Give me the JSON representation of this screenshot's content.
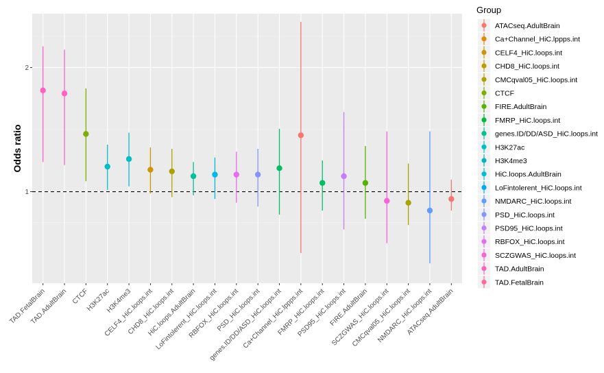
{
  "chart_data": {
    "type": "errorbar-point",
    "title": "",
    "xlabel": "",
    "ylabel": "Odds ratio",
    "y_scale": "log",
    "ylim": [
      0.6,
      2.7
    ],
    "y_ticks": [
      1,
      2
    ],
    "y_tick_labels": [
      "1",
      "2"
    ],
    "reference_line": {
      "y": 1,
      "style": "dashed"
    },
    "grid": true,
    "legend": {
      "title": "Group",
      "placement": "right"
    },
    "points": [
      {
        "group": "TAD.FetalBrain",
        "or": 1.76,
        "lo": 1.18,
        "hi": 2.25,
        "color": "#FF61C3"
      },
      {
        "group": "TAD.AdultBrain",
        "or": 1.73,
        "lo": 1.16,
        "hi": 2.21,
        "color": "#FF61C3"
      },
      {
        "group": "CTCF",
        "or": 1.38,
        "lo": 1.06,
        "hi": 1.78,
        "color": "#7CAE00"
      },
      {
        "group": "H3K27ac",
        "or": 1.15,
        "lo": 1.01,
        "hi": 1.3,
        "color": "#00BFC4"
      },
      {
        "group": "H3K4me3",
        "or": 1.2,
        "lo": 1.03,
        "hi": 1.39,
        "color": "#00BFC4"
      },
      {
        "group": "CELF4_HiC.loops.int",
        "or": 1.13,
        "lo": 0.99,
        "hi": 1.28,
        "color": "#CD9600"
      },
      {
        "group": "CHD8_HiC.loops.int",
        "or": 1.12,
        "lo": 0.97,
        "hi": 1.27,
        "color": "#ABA300"
      },
      {
        "group": "HiC.loops.AdultBrain",
        "or": 1.09,
        "lo": 0.98,
        "hi": 1.18,
        "color": "#00C19A"
      },
      {
        "group": "LoFintolerent_HiC.loops.int",
        "or": 1.1,
        "lo": 0.96,
        "hi": 1.21,
        "color": "#00B8E7"
      },
      {
        "group": "RBFOX_HiC.loops.int",
        "or": 1.1,
        "lo": 0.94,
        "hi": 1.25,
        "color": "#E76BF3"
      },
      {
        "group": "PSD_HiC.loops.int",
        "or": 1.1,
        "lo": 0.92,
        "hi": 1.27,
        "color": "#8494FF"
      },
      {
        "group": "genes.ID/DD/ASD_HiC.loops.int",
        "or": 1.14,
        "lo": 0.88,
        "hi": 1.42,
        "color": "#00BE67"
      },
      {
        "group": "Ca+Channel_HiC.lppps.int",
        "or": 1.37,
        "lo": 0.71,
        "hi": 2.58,
        "color": "#F8766D"
      },
      {
        "group": "FMRP_HiC.loops.int",
        "or": 1.05,
        "lo": 0.9,
        "hi": 1.19,
        "color": "#00BE67"
      },
      {
        "group": "PSD95_HiC.loops.int",
        "or": 1.09,
        "lo": 0.81,
        "hi": 1.56,
        "color": "#C77CFF"
      },
      {
        "group": "FIRE.AdultBrain",
        "or": 1.05,
        "lo": 0.86,
        "hi": 1.29,
        "color": "#53B400"
      },
      {
        "group": "SCZGWAS_HiC.loops.int",
        "or": 0.95,
        "lo": 0.75,
        "hi": 1.4,
        "color": "#FB61D7"
      },
      {
        "group": "CMCqval05_HiC.loops.int",
        "or": 0.94,
        "lo": 0.83,
        "hi": 1.17,
        "color": "#ABA300"
      },
      {
        "group": "NMDARC_HiC.loops.int",
        "or": 0.9,
        "lo": 0.67,
        "hi": 1.4,
        "color": "#619CFF"
      },
      {
        "group": "ATACseq.AdultBrain",
        "or": 0.96,
        "lo": 0.9,
        "hi": 1.07,
        "color": "#F8766D"
      }
    ],
    "legend_entries": [
      {
        "label": "ATACseq.AdultBrain",
        "color": "#F8766D"
      },
      {
        "label": "Ca+Channel_HiC.lppps.int",
        "color": "#E58700"
      },
      {
        "label": "CELF4_HiC.loops.int",
        "color": "#CD9600"
      },
      {
        "label": "CHD8_HiC.loops.int",
        "color": "#C09B00"
      },
      {
        "label": "CMCqval05_HiC.loops.int",
        "color": "#ABA300"
      },
      {
        "label": "CTCF",
        "color": "#7CAE00"
      },
      {
        "label": "FIRE.AdultBrain",
        "color": "#53B400"
      },
      {
        "label": "FMRP_HiC.loops.int",
        "color": "#00BA38"
      },
      {
        "label": "genes.ID/DD/ASD_HiC.loops.int",
        "color": "#00C08B"
      },
      {
        "label": "H3K27ac",
        "color": "#00BFC4"
      },
      {
        "label": "H3K4me3",
        "color": "#00B4B8"
      },
      {
        "label": "HiC.loops.AdultBrain",
        "color": "#00BCD8"
      },
      {
        "label": "LoFintolerent_HiC.loops.int",
        "color": "#00A9FF"
      },
      {
        "label": "NMDARC_HiC.loops.int",
        "color": "#619CFF"
      },
      {
        "label": "PSD_HiC.loops.int",
        "color": "#8494FF"
      },
      {
        "label": "PSD95_HiC.loops.int",
        "color": "#C77CFF"
      },
      {
        "label": "RBFOX_HiC.loops.int",
        "color": "#E76BF3"
      },
      {
        "label": "SCZGWAS_HiC.loops.int",
        "color": "#FB61D7"
      },
      {
        "label": "TAD.AdultBrain",
        "color": "#FF62BC"
      },
      {
        "label": "TAD.FetalBrain",
        "color": "#FF6A98"
      }
    ]
  }
}
